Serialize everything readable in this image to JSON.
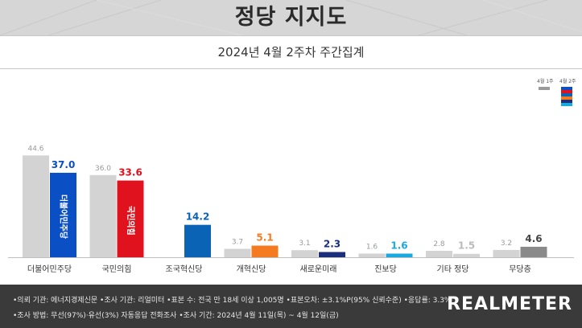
{
  "header": {
    "title": "정당 지지도",
    "subtitle": "2024년 4월 2주차 주간집계"
  },
  "legend": {
    "prev_label": "4월 1주",
    "cur_label": "4월 2주",
    "prev_color": "#9a9a9a",
    "cur_swatch_colors": [
      "#0a4fc4",
      "#e0121d",
      "#0a63b5",
      "#f47b20",
      "#1b2f7a",
      "#18a9e0"
    ]
  },
  "chart_data": {
    "type": "bar",
    "categories": [
      "더불어민주당",
      "국민의힘",
      "조국혁신당",
      "개혁신당",
      "새로운미래",
      "진보당",
      "기타 정당",
      "무당층"
    ],
    "series": [
      {
        "name": "4월 1주",
        "values": [
          44.6,
          36.0,
          null,
          3.7,
          3.1,
          1.6,
          2.8,
          3.2
        ],
        "value_labels": [
          "44.6",
          "36.0",
          "",
          "3.7",
          "3.1",
          "1.6",
          "2.8",
          "3.2"
        ]
      },
      {
        "name": "4월 2주",
        "values": [
          37.0,
          33.6,
          14.2,
          5.1,
          2.3,
          1.6,
          1.5,
          4.6
        ],
        "value_labels": [
          "37.0",
          "33.6",
          "14.2",
          "5.1",
          "2.3",
          "1.6",
          "1.5",
          "4.6"
        ]
      }
    ],
    "colors": {
      "prev": "#d3d3d3",
      "current": [
        "#0a4fc4",
        "#e0121d",
        "#0a63b5",
        "#f47b20",
        "#1b2f7a",
        "#18a9e0",
        "#d3d3d3",
        "#8a8a8a"
      ],
      "current_label": [
        "#0a4fc4",
        "#e0121d",
        "#0a63b5",
        "#f47b20",
        "#1b2f7a",
        "#18a9e0",
        "#bbbbbb",
        "#444444"
      ]
    },
    "bar_logos": [
      "더불어민주당",
      "국민의힘",
      "",
      "",
      "",
      "",
      "",
      ""
    ],
    "ylim": [
      0,
      50
    ],
    "grid": false,
    "legend_position": "top-right"
  },
  "footer": {
    "note1": "•의뢰 기관: 에너지경제신문  •조사 기관: 리얼미터  •표본 수: 전국 만 18세 이상 1,005명  •표본오차: ±3.1%P(95% 신뢰수준)  •응답률: 3.3%",
    "note2": "•조사 방법: 무선(97%)·유선(3%) 자동응답 전화조사  •조사 기간: 2024년 4월 11일(목) ~ 4월 12일(금)",
    "logo": "REALMETER"
  }
}
